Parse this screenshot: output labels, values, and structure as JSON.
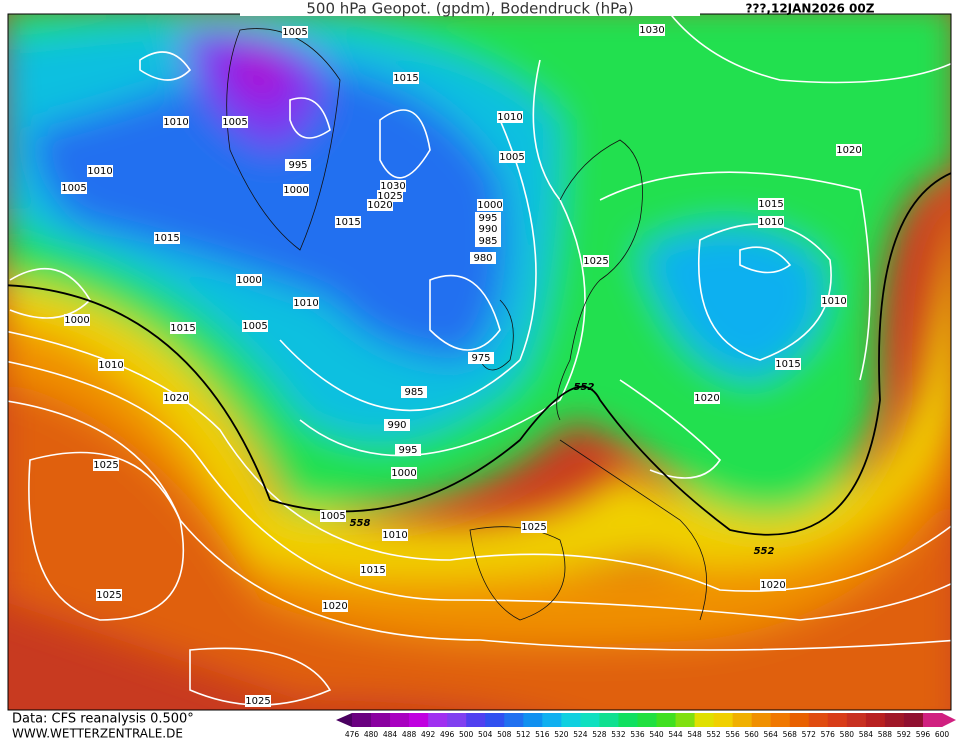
{
  "header": {
    "title": "500 hPa Geopot. (gpdm), Bodendruck (hPa)",
    "run": "???,12JAN2026 00Z"
  },
  "map": {
    "isobar_labels": [
      1005,
      1015,
      1010,
      1005,
      1010,
      1005,
      1010,
      1005,
      995,
      1000,
      1030,
      1025,
      1020,
      1015,
      1000,
      995,
      990,
      985,
      980,
      1015,
      1000,
      1010,
      1005,
      1000,
      1015,
      1010,
      975,
      985,
      990,
      995,
      1000,
      1020,
      1025,
      1005,
      1010,
      1015,
      1020,
      1025,
      1025,
      1025,
      1030,
      1020,
      1015,
      1010,
      1025,
      1010,
      1015,
      1020,
      1020
    ],
    "height_labels": [
      558,
      552,
      552
    ]
  },
  "colorbar": {
    "labels": [
      476,
      480,
      484,
      488,
      492,
      496,
      500,
      504,
      508,
      512,
      516,
      520,
      524,
      528,
      532,
      536,
      540,
      544,
      548,
      552,
      556,
      560,
      564,
      568,
      572,
      576,
      580,
      584,
      588,
      592,
      596,
      600
    ],
    "colors": [
      "#4a0060",
      "#6a0080",
      "#8a00a0",
      "#a800c0",
      "#c000e0",
      "#a030f0",
      "#8040f0",
      "#5040f0",
      "#3050f0",
      "#2070f0",
      "#1090f0",
      "#10b0f0",
      "#10d0e0",
      "#10e0c0",
      "#10e090",
      "#10e060",
      "#20e040",
      "#40e020",
      "#80e010",
      "#e0e000",
      "#f0d000",
      "#f0b000",
      "#f09000",
      "#f07800",
      "#e86000",
      "#e04c10",
      "#d83c18",
      "#c83020",
      "#b82020",
      "#a01828",
      "#901030",
      "#d02080"
    ]
  },
  "footer": {
    "source": "Data: CFS reanalysis 0.500°",
    "site": "WWW.WETTERZENTRALE.DE"
  }
}
